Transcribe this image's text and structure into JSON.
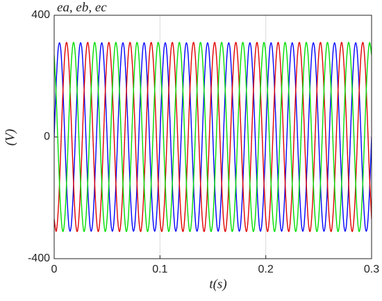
{
  "chart_data": {
    "type": "line",
    "title": "ea, eb, ec",
    "xlabel": "t(s)",
    "ylabel": "(V)",
    "x": [
      0,
      0.002,
      0.004,
      0.006,
      0.008,
      0.01,
      0.012,
      0.014,
      0.016,
      0.018,
      0.02,
      0.022,
      0.024,
      0.026,
      0.028,
      0.03,
      0.032,
      0.034,
      0.036,
      0.038,
      0.04,
      0.042,
      0.044,
      0.046,
      0.048,
      0.05,
      0.052,
      0.054,
      0.056,
      0.058,
      0.06,
      0.062,
      0.064,
      0.066,
      0.068,
      0.07,
      0.072,
      0.074,
      0.076,
      0.078,
      0.08,
      0.082,
      0.084,
      0.086,
      0.088,
      0.09,
      0.092,
      0.094,
      0.096,
      0.098,
      0.1,
      0.102,
      0.104,
      0.106,
      0.108,
      0.11,
      0.112,
      0.114,
      0.116,
      0.118,
      0.12,
      0.122,
      0.124,
      0.126,
      0.128,
      0.13,
      0.132,
      0.134,
      0.136,
      0.138,
      0.14,
      0.142,
      0.144,
      0.146,
      0.148,
      0.15,
      0.152,
      0.154,
      0.156,
      0.158,
      0.16,
      0.162,
      0.164,
      0.166,
      0.168,
      0.17,
      0.172,
      0.174,
      0.176,
      0.178,
      0.18,
      0.182,
      0.184,
      0.186,
      0.188,
      0.19,
      0.192,
      0.194,
      0.196,
      0.198,
      0.2,
      0.202,
      0.204,
      0.206,
      0.208,
      0.21,
      0.212,
      0.214,
      0.216,
      0.218,
      0.22,
      0.222,
      0.224,
      0.226,
      0.228,
      0.23,
      0.232,
      0.234,
      0.236,
      0.238,
      0.24,
      0.242,
      0.244,
      0.246,
      0.248,
      0.25,
      0.252,
      0.254,
      0.256,
      0.258,
      0.26,
      0.262,
      0.264,
      0.266,
      0.268,
      0.27,
      0.272,
      0.274,
      0.276,
      0.278,
      0.28,
      0.282,
      0.284,
      0.286,
      0.288,
      0.29,
      0.292,
      0.294,
      0.296,
      0.298,
      0.3
    ],
    "series": [
      {
        "name": "ea",
        "color": "#0000ff",
        "values": [
          0,
          182.8,
          295.8,
          295.8,
          182.8,
          0,
          -182.8,
          -295.8,
          -295.8,
          -182.8,
          0,
          182.8,
          295.8,
          295.8,
          182.8,
          0,
          -182.8,
          -295.8,
          -295.8,
          -182.8,
          0,
          182.8,
          295.8,
          295.8,
          182.8,
          0,
          -182.8,
          -295.8,
          -295.8,
          -182.8,
          0,
          182.8,
          295.8,
          295.8,
          182.8,
          0,
          -182.8,
          -295.8,
          -295.8,
          -182.8,
          0,
          182.8,
          295.8,
          295.8,
          182.8,
          0,
          -182.8,
          -295.8,
          -295.8,
          -182.8,
          0,
          182.8,
          295.8,
          295.8,
          182.8,
          0,
          -182.8,
          -295.8,
          -295.8,
          -182.8,
          0,
          182.8,
          295.8,
          295.8,
          182.8,
          0,
          -182.8,
          -295.8,
          -295.8,
          -182.8,
          0,
          182.8,
          295.8,
          295.8,
          182.8,
          0,
          -182.8,
          -295.8,
          -295.8,
          -182.8,
          0,
          182.8,
          295.8,
          295.8,
          182.8,
          0,
          -182.8,
          -295.8,
          -295.8,
          -182.8,
          0,
          182.8,
          295.8,
          295.8,
          182.8,
          0,
          -182.8,
          -295.8,
          -295.8,
          -182.8,
          0,
          182.8,
          295.8,
          295.8,
          182.8,
          0,
          -182.8,
          -295.8,
          -295.8,
          -182.8,
          0,
          182.8,
          295.8,
          295.8,
          182.8,
          0,
          -182.8,
          -295.8,
          -295.8,
          -182.8,
          0,
          182.8,
          295.8,
          295.8,
          182.8,
          0,
          -182.8,
          -295.8,
          -295.8,
          -182.8,
          0,
          182.8,
          295.8,
          295.8,
          182.8,
          0,
          -182.8,
          -295.8,
          -295.8,
          -182.8,
          0,
          182.8,
          295.8,
          295.8,
          182.8,
          0,
          -182.8,
          -295.8,
          -295.8,
          -182.8,
          0
        ]
      },
      {
        "name": "eb",
        "color": "#e00000",
        "values": [
          -269.3,
          -309.3,
          -231.1,
          -64.7,
          126.5,
          269.3,
          309.3,
          231.1,
          64.7,
          -126.5,
          -269.3,
          -309.3,
          -231.1,
          -64.7,
          126.5,
          269.3,
          309.3,
          231.1,
          64.7,
          -126.5,
          -269.3,
          -309.3,
          -231.1,
          -64.7,
          126.5,
          269.3,
          309.3,
          231.1,
          64.7,
          -126.5,
          -269.3,
          -309.3,
          -231.1,
          -64.7,
          126.5,
          269.3,
          309.3,
          231.1,
          64.7,
          -126.5,
          -269.3,
          -309.3,
          -231.1,
          -64.7,
          126.5,
          269.3,
          309.3,
          231.1,
          64.7,
          -126.5,
          -269.3,
          -309.3,
          -231.1,
          -64.7,
          126.5,
          269.3,
          309.3,
          231.1,
          64.7,
          -126.5,
          -269.3,
          -309.3,
          -231.1,
          -64.7,
          126.5,
          269.3,
          309.3,
          231.1,
          64.7,
          -126.5,
          -269.3,
          -309.3,
          -231.1,
          -64.7,
          126.5,
          269.3,
          309.3,
          231.1,
          64.7,
          -126.5,
          -269.3,
          -309.3,
          -231.1,
          -64.7,
          126.5,
          269.3,
          309.3,
          231.1,
          64.7,
          -126.5,
          -269.3,
          -309.3,
          -231.1,
          -64.7,
          126.5,
          269.3,
          309.3,
          231.1,
          64.7,
          -126.5,
          -269.3,
          -309.3,
          -231.1,
          -64.7,
          126.5,
          269.3,
          309.3,
          231.1,
          64.7,
          -126.5,
          -269.3,
          -309.3,
          -231.1,
          -64.7,
          126.5,
          269.3,
          309.3,
          231.1,
          64.7,
          -126.5,
          -269.3,
          -309.3,
          -231.1,
          -64.7,
          126.5,
          269.3,
          309.3,
          231.1,
          64.7,
          -126.5,
          -269.3,
          -309.3,
          -231.1,
          -64.7,
          126.5,
          269.3,
          309.3,
          231.1,
          64.7,
          -126.5,
          -269.3,
          -309.3,
          -231.1,
          -64.7,
          126.5,
          269.3,
          309.3,
          231.1,
          64.7,
          -126.5,
          -269.3
        ]
      },
      {
        "name": "ec",
        "color": "#00dd00",
        "values": [
          269.3,
          126.5,
          -64.7,
          -231.1,
          -309.3,
          -269.3,
          -126.5,
          64.7,
          231.1,
          309.3,
          269.3,
          126.5,
          -64.7,
          -231.1,
          -309.3,
          -269.3,
          -126.5,
          64.7,
          231.1,
          309.3,
          269.3,
          126.5,
          -64.7,
          -231.1,
          -309.3,
          -269.3,
          -126.5,
          64.7,
          231.1,
          309.3,
          269.3,
          126.5,
          -64.7,
          -231.1,
          -309.3,
          -269.3,
          -126.5,
          64.7,
          231.1,
          309.3,
          269.3,
          126.5,
          -64.7,
          -231.1,
          -309.3,
          -269.3,
          -126.5,
          64.7,
          231.1,
          309.3,
          269.3,
          126.5,
          -64.7,
          -231.1,
          -309.3,
          -269.3,
          -126.5,
          64.7,
          231.1,
          309.3,
          269.3,
          126.5,
          -64.7,
          -231.1,
          -309.3,
          -269.3,
          -126.5,
          64.7,
          231.1,
          309.3,
          269.3,
          126.5,
          -64.7,
          -231.1,
          -309.3,
          -269.3,
          -126.5,
          64.7,
          231.1,
          309.3,
          269.3,
          126.5,
          -64.7,
          -231.1,
          -309.3,
          -269.3,
          -126.5,
          64.7,
          231.1,
          309.3,
          269.3,
          126.5,
          -64.7,
          -231.1,
          -309.3,
          -269.3,
          -126.5,
          64.7,
          231.1,
          309.3,
          269.3,
          126.5,
          -64.7,
          -231.1,
          -309.3,
          -269.3,
          -126.5,
          64.7,
          231.1,
          309.3,
          269.3,
          126.5,
          -64.7,
          -231.1,
          -309.3,
          -269.3,
          -126.5,
          64.7,
          231.1,
          309.3,
          269.3,
          126.5,
          -64.7,
          -231.1,
          -309.3,
          -269.3,
          -126.5,
          64.7,
          231.1,
          309.3,
          269.3,
          126.5,
          -64.7,
          -231.1,
          -309.3,
          -269.3,
          -126.5,
          64.7,
          231.1,
          309.3,
          269.3,
          126.5,
          -64.7,
          -231.1,
          -309.3,
          -269.3,
          -126.5,
          64.7,
          231.1,
          309.3,
          269.3
        ]
      }
    ],
    "xlim": [
      0,
      0.3
    ],
    "ylim": [
      -400,
      400
    ],
    "xticks": [
      0,
      0.1,
      0.2,
      0.3
    ],
    "yticks": [
      -400,
      0,
      400
    ],
    "grid": true
  }
}
